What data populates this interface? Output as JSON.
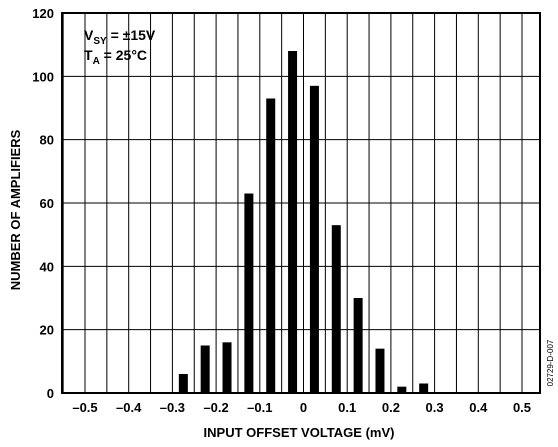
{
  "chart_data": {
    "type": "bar",
    "xlabel": "INPUT OFFSET VOLTAGE (mV)",
    "ylabel": "NUMBER OF AMPLIFIERS",
    "xlim": [
      -0.5,
      0.5
    ],
    "ylim": [
      0,
      120
    ],
    "x_ticks": [
      "–0.5",
      "–0.4",
      "–0.3",
      "–0.2",
      "–0.1",
      "0",
      "0.1",
      "0.2",
      "0.3",
      "0.4",
      "0.5"
    ],
    "y_ticks": [
      "0",
      "20",
      "40",
      "60",
      "80",
      "100",
      "120"
    ],
    "grid": true,
    "bars": [
      {
        "x": -0.275,
        "value": 6
      },
      {
        "x": -0.225,
        "value": 15
      },
      {
        "x": -0.175,
        "value": 16
      },
      {
        "x": -0.125,
        "value": 63
      },
      {
        "x": -0.075,
        "value": 93
      },
      {
        "x": -0.025,
        "value": 108
      },
      {
        "x": 0.025,
        "value": 97
      },
      {
        "x": 0.075,
        "value": 53
      },
      {
        "x": 0.125,
        "value": 30
      },
      {
        "x": 0.175,
        "value": 14
      },
      {
        "x": 0.225,
        "value": 2
      },
      {
        "x": 0.275,
        "value": 3
      }
    ],
    "annotation": {
      "line1_main": "V",
      "line1_sub": "SY",
      "line1_rest": " = ±15V",
      "line2_main": "T",
      "line2_sub": "A",
      "line2_rest": " = 25°C"
    },
    "document_id": "02729-D-007"
  }
}
